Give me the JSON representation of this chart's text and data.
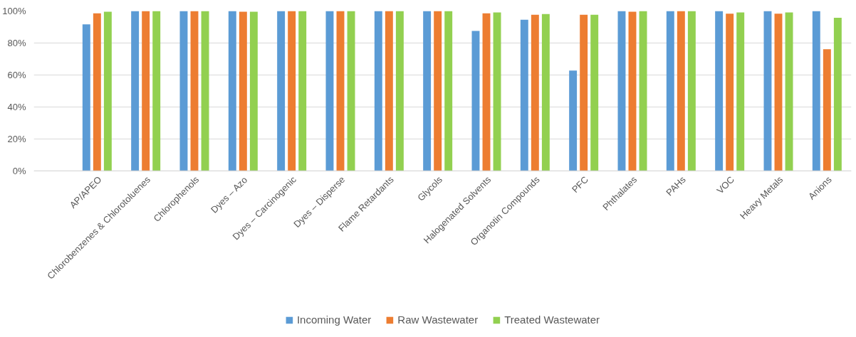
{
  "chart_data": {
    "type": "bar",
    "categories": [
      "AP/APEO",
      "Chlorobenzenes & Chlorotoluenes",
      "Chlorophenols",
      "Dyes – Azo",
      "Dyes – Carcinogenic",
      "Dyes – Disperse",
      "Flame Retardants",
      "Glycols",
      "Halogenated Solvents",
      "Organotin Compounds",
      "PFC",
      "Phthalates",
      "PAHs",
      "VOC",
      "Heavy Metals",
      "Anions"
    ],
    "series": [
      {
        "name": "Incoming Water",
        "color": "#5b9bd5",
        "values": [
          91.7,
          100,
          100,
          100,
          100,
          100,
          100,
          100,
          87.5,
          94.5,
          62.7,
          100,
          100,
          100,
          100,
          100
        ]
      },
      {
        "name": "Raw Wastewater",
        "color": "#ed7d31",
        "values": [
          98.6,
          100,
          100,
          99.5,
          100,
          100,
          100,
          100,
          98.6,
          97.7,
          97.7,
          99.5,
          100,
          98.3,
          98.3,
          76.1
        ]
      },
      {
        "name": "Treated Wastewater",
        "color": "#92d050",
        "values": [
          99.5,
          100,
          100,
          99.5,
          100,
          100,
          100,
          100,
          99.1,
          98.1,
          97.7,
          100,
          100,
          99.1,
          99.1,
          95.8
        ]
      }
    ],
    "ylim": [
      0,
      100
    ],
    "yticks": [
      {
        "value": 0,
        "label": "0%"
      },
      {
        "value": 20,
        "label": "20%"
      },
      {
        "value": 40,
        "label": "40%"
      },
      {
        "value": 60,
        "label": "60%"
      },
      {
        "value": 80,
        "label": "80%"
      },
      {
        "value": 100,
        "label": "100%"
      }
    ],
    "grid": "y",
    "legend": "bottom"
  }
}
